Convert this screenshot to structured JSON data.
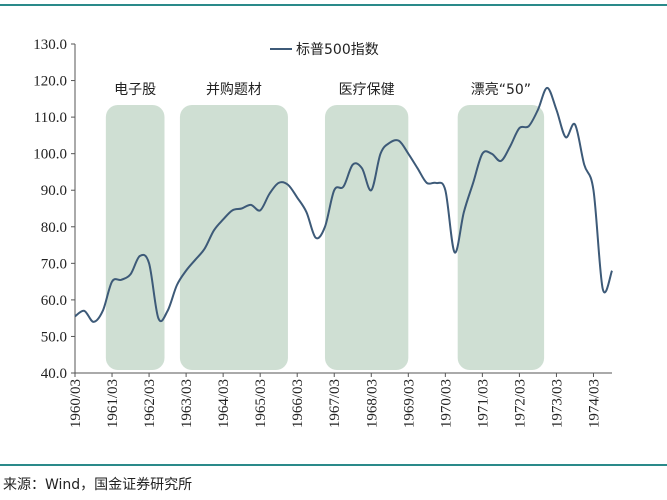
{
  "chart_data": {
    "type": "line",
    "series": [
      {
        "name": "标普500指数",
        "color": "#3d5a78",
        "values": [
          55.5,
          57,
          54,
          57,
          65,
          65.5,
          67,
          72,
          70,
          55,
          57,
          64,
          68,
          71,
          74,
          79,
          82,
          84.5,
          85,
          86,
          84.5,
          89,
          92,
          91.5,
          88,
          84,
          77,
          80,
          90,
          91,
          97,
          96,
          90,
          100,
          103,
          103.5,
          100,
          96,
          92,
          92,
          90,
          73,
          84,
          92,
          100,
          100,
          98,
          102,
          107,
          107.5,
          112,
          118,
          112,
          104.5,
          108,
          97,
          90,
          63,
          68
        ]
      }
    ],
    "x": [
      "1960/03",
      "1960/06",
      "1960/09",
      "1960/12",
      "1961/03",
      "1961/06",
      "1961/09",
      "1961/12",
      "1962/03",
      "1962/06",
      "1962/09",
      "1962/12",
      "1963/03",
      "1963/06",
      "1963/09",
      "1963/12",
      "1964/03",
      "1964/06",
      "1964/09",
      "1964/12",
      "1965/03",
      "1965/06",
      "1965/09",
      "1965/12",
      "1966/03",
      "1966/06",
      "1966/09",
      "1966/12",
      "1967/03",
      "1967/06",
      "1967/09",
      "1967/12",
      "1968/03",
      "1968/06",
      "1968/09",
      "1968/12",
      "1969/03",
      "1969/06",
      "1969/09",
      "1969/12",
      "1970/03",
      "1970/06",
      "1970/09",
      "1970/12",
      "1971/03",
      "1971/06",
      "1971/09",
      "1971/12",
      "1972/03",
      "1972/06",
      "1972/09",
      "1972/12",
      "1973/03",
      "1973/06",
      "1973/09",
      "1973/12",
      "1974/03",
      "1974/06",
      "1974/09"
    ],
    "xlim": [
      "1960/03",
      "1974/09"
    ],
    "xticks": [
      "1960/03",
      "1961/03",
      "1962/03",
      "1963/03",
      "1964/03",
      "1965/03",
      "1966/03",
      "1967/03",
      "1968/03",
      "1969/03",
      "1970/03",
      "1971/03",
      "1972/03",
      "1973/03",
      "1974/03"
    ],
    "ylim": [
      40,
      130
    ],
    "yticks": [
      {
        "value": 40,
        "label": "40.0"
      },
      {
        "value": 50,
        "label": "50.0"
      },
      {
        "value": 60,
        "label": "60.0"
      },
      {
        "value": 70,
        "label": "70.0"
      },
      {
        "value": 80,
        "label": "80.0"
      },
      {
        "value": 90,
        "label": "90.0"
      },
      {
        "value": 100,
        "label": "100.0"
      },
      {
        "value": 110,
        "label": "110.0"
      },
      {
        "value": 120,
        "label": "120.0"
      },
      {
        "value": 130,
        "label": "130.0"
      }
    ],
    "periods": [
      {
        "label": "电子股",
        "start": "1961/01",
        "end": "1962/08"
      },
      {
        "label": "并购题材",
        "start": "1963/01",
        "end": "1965/12"
      },
      {
        "label": "医疗保健",
        "start": "1966/12",
        "end": "1969/03"
      },
      {
        "label": "漂亮“50”",
        "start": "1970/07",
        "end": "1972/11"
      }
    ],
    "period_color": "#9fbfa8",
    "source": "来源：Wind，国金证券研究所"
  }
}
